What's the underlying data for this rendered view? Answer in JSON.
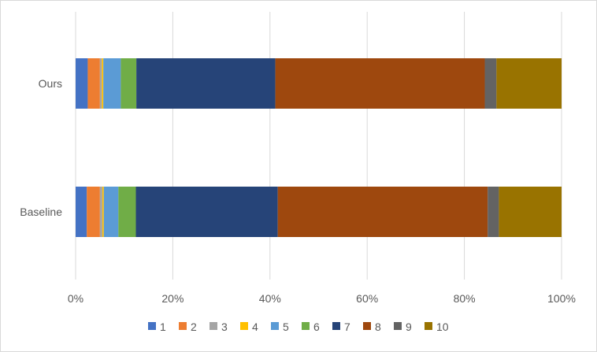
{
  "chart_data": {
    "type": "bar",
    "orientation": "horizontal",
    "stacked": "percent",
    "categories": [
      "Ours",
      "Baseline"
    ],
    "series": [
      {
        "name": "1",
        "color": "#4472C4",
        "values": [
          2.5,
          2.3
        ]
      },
      {
        "name": "2",
        "color": "#ED7D31",
        "values": [
          2.5,
          2.7
        ]
      },
      {
        "name": "3",
        "color": "#A5A5A5",
        "values": [
          0.4,
          0.5
        ]
      },
      {
        "name": "4",
        "color": "#FFC000",
        "values": [
          0.3,
          0.3
        ]
      },
      {
        "name": "5",
        "color": "#5B9BD5",
        "values": [
          3.6,
          3.0
        ]
      },
      {
        "name": "6",
        "color": "#70AD47",
        "values": [
          3.2,
          3.6
        ]
      },
      {
        "name": "7",
        "color": "#264478",
        "values": [
          28.6,
          29.2
        ]
      },
      {
        "name": "8",
        "color": "#9E480E",
        "values": [
          43.1,
          43.2
        ]
      },
      {
        "name": "9",
        "color": "#636363",
        "values": [
          2.4,
          2.3
        ]
      },
      {
        "name": "10",
        "color": "#997300",
        "values": [
          13.4,
          12.9
        ]
      }
    ],
    "xticks": [
      "0%",
      "20%",
      "40%",
      "60%",
      "80%",
      "100%"
    ],
    "xlim": [
      0,
      100
    ],
    "grid": "vertical",
    "legend_position": "bottom",
    "title": "",
    "xlabel": "",
    "ylabel": ""
  }
}
